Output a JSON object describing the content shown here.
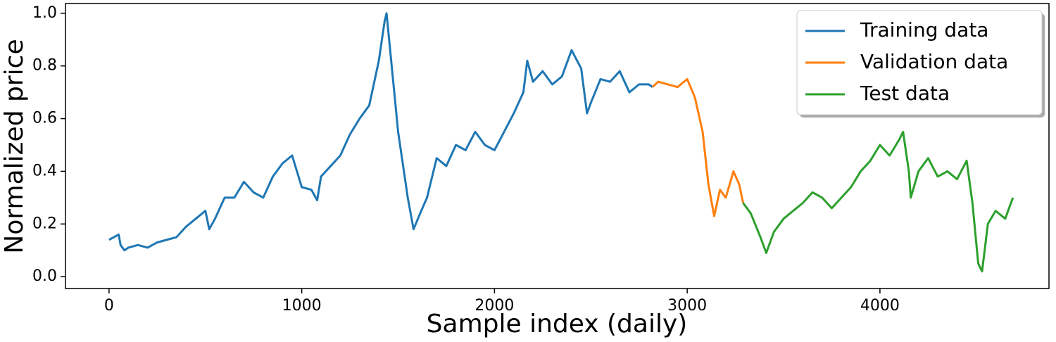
{
  "chart_data": {
    "type": "line",
    "xlabel": "Sample index (daily)",
    "ylabel": "Normalized price",
    "xlim": [
      -226,
      4877
    ],
    "ylim": [
      -0.045,
      1.037
    ],
    "xticks": [
      0,
      1000,
      2000,
      3000,
      4000
    ],
    "yticks": [
      {
        "value": 0,
        "label": "0.0"
      },
      0.2,
      0.4,
      0.6,
      0.8,
      {
        "value": 1,
        "label": "1.0"
      }
    ],
    "grid": false,
    "legend": "upper right",
    "series": [
      {
        "name": "Training data",
        "color": "#1f77b4",
        "x": [
          0,
          25,
          50,
          60,
          80,
          100,
          150,
          200,
          250,
          300,
          350,
          400,
          450,
          500,
          520,
          550,
          600,
          650,
          700,
          750,
          800,
          850,
          900,
          950,
          1000,
          1050,
          1080,
          1100,
          1150,
          1200,
          1250,
          1300,
          1350,
          1400,
          1430,
          1440,
          1460,
          1500,
          1550,
          1580,
          1620,
          1650,
          1700,
          1750,
          1800,
          1850,
          1900,
          1950,
          2000,
          2050,
          2100,
          2150,
          2170,
          2200,
          2250,
          2300,
          2350,
          2400,
          2450,
          2480,
          2500,
          2550,
          2600,
          2650,
          2700,
          2750,
          2800,
          2820
        ],
        "values": [
          0.14,
          0.15,
          0.16,
          0.12,
          0.1,
          0.11,
          0.12,
          0.11,
          0.13,
          0.14,
          0.15,
          0.19,
          0.22,
          0.25,
          0.18,
          0.22,
          0.3,
          0.3,
          0.36,
          0.32,
          0.3,
          0.38,
          0.43,
          0.46,
          0.34,
          0.33,
          0.29,
          0.38,
          0.42,
          0.46,
          0.54,
          0.6,
          0.65,
          0.82,
          0.97,
          1.0,
          0.85,
          0.55,
          0.3,
          0.18,
          0.25,
          0.3,
          0.45,
          0.42,
          0.5,
          0.48,
          0.55,
          0.5,
          0.48,
          0.55,
          0.62,
          0.7,
          0.82,
          0.74,
          0.78,
          0.73,
          0.76,
          0.86,
          0.79,
          0.62,
          0.66,
          0.75,
          0.74,
          0.78,
          0.7,
          0.73,
          0.73,
          0.72
        ]
      },
      {
        "name": "Validation data",
        "color": "#ff7f0e",
        "x": [
          2820,
          2850,
          2900,
          2950,
          3000,
          3040,
          3080,
          3110,
          3140,
          3170,
          3200,
          3240,
          3270,
          3290
        ],
        "values": [
          0.72,
          0.74,
          0.73,
          0.72,
          0.75,
          0.68,
          0.55,
          0.35,
          0.23,
          0.33,
          0.3,
          0.4,
          0.35,
          0.28
        ]
      },
      {
        "name": "Test data",
        "color": "#2ca02c",
        "x": [
          3290,
          3330,
          3380,
          3410,
          3450,
          3500,
          3550,
          3600,
          3650,
          3700,
          3750,
          3800,
          3850,
          3900,
          3950,
          4000,
          4050,
          4100,
          4120,
          4150,
          4160,
          4200,
          4250,
          4300,
          4350,
          4400,
          4450,
          4480,
          4510,
          4530,
          4560,
          4600,
          4650,
          4690
        ],
        "values": [
          0.28,
          0.24,
          0.15,
          0.09,
          0.17,
          0.22,
          0.25,
          0.28,
          0.32,
          0.3,
          0.26,
          0.3,
          0.34,
          0.4,
          0.44,
          0.5,
          0.46,
          0.52,
          0.55,
          0.4,
          0.3,
          0.4,
          0.45,
          0.38,
          0.4,
          0.37,
          0.44,
          0.28,
          0.05,
          0.02,
          0.2,
          0.25,
          0.22,
          0.3
        ]
      }
    ]
  }
}
